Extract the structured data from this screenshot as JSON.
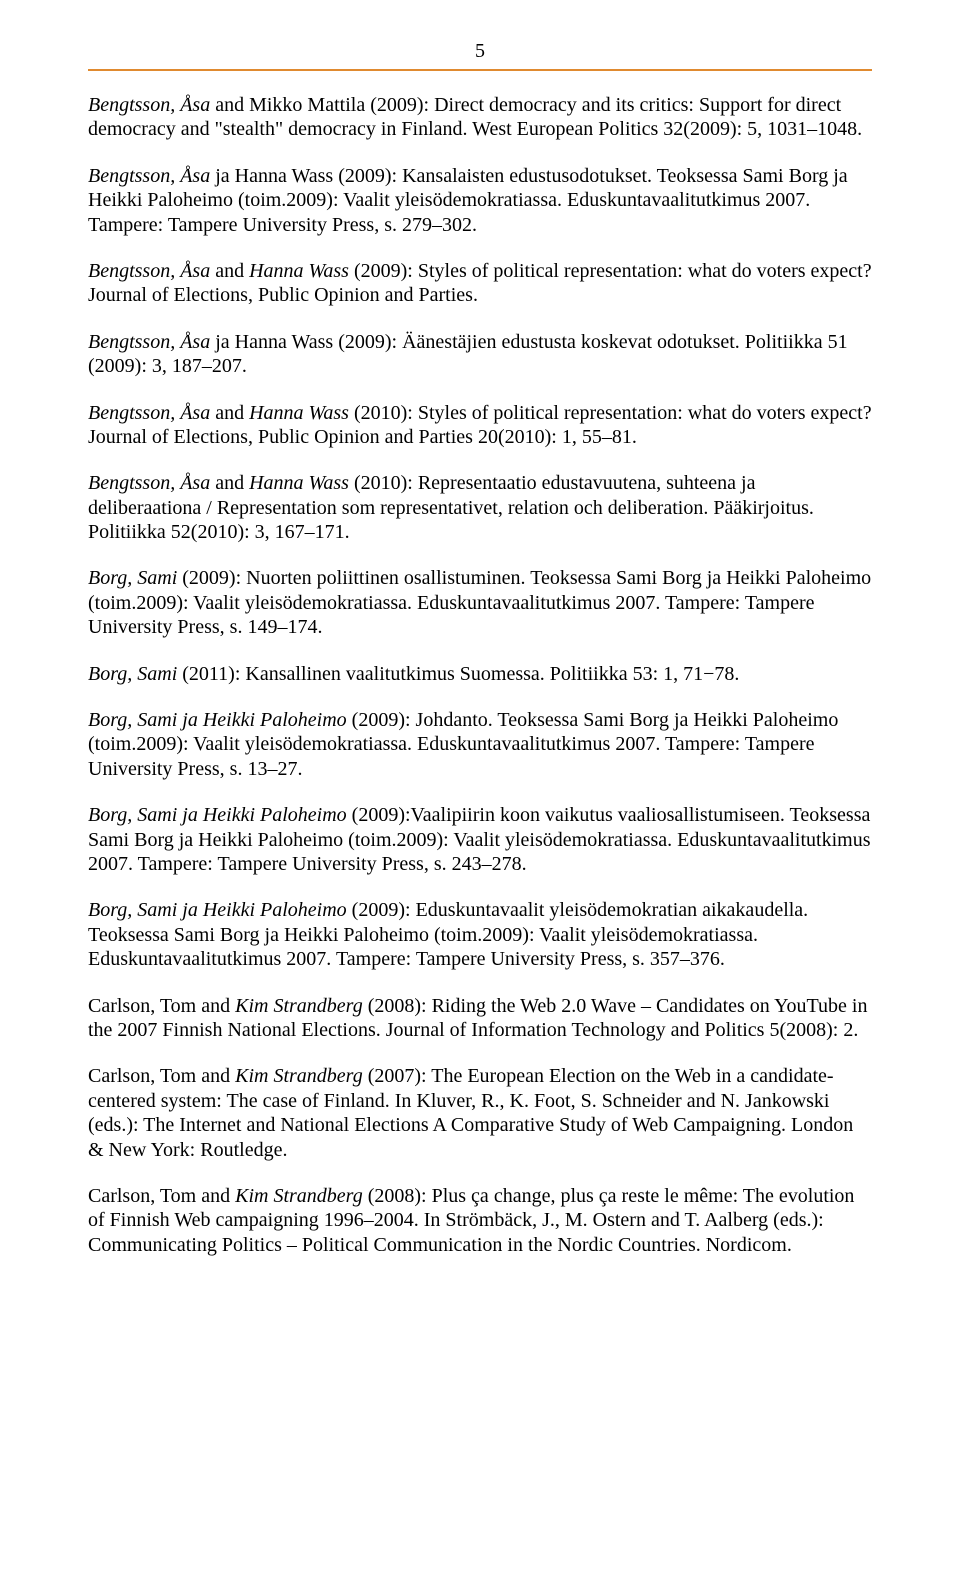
{
  "page_number": "5",
  "rule_color": "#e08a2f",
  "font_family": "Times New Roman",
  "body_font_size_pt": 15,
  "entries": [
    {
      "prefix_italic": "Bengtsson, Åsa",
      "rest": " and Mikko Mattila (2009): Direct democracy and its critics: Support for direct democracy and \"stealth\" democracy in Finland. West European Politics 32(2009): 5, 1031–1048."
    },
    {
      "prefix_italic": "Bengtsson, Åsa",
      "rest": " ja Hanna Wass (2009): Kansalaisten edustusodotukset. Teoksessa Sami Borg ja Heikki Paloheimo (toim.2009): Vaalit yleisödemokratiassa. Eduskuntavaalitutkimus 2007. Tampere: Tampere University Press, s. 279–302."
    },
    {
      "prefix_italic": "Bengtsson, Åsa",
      "mid": " and ",
      "mid_italic": "Hanna Wass",
      "rest": " (2009): Styles of political  representation: what do voters expect? Journal of Elections, Public Opinion and Parties."
    },
    {
      "prefix_italic": "Bengtsson, Åsa",
      "rest": " ja Hanna Wass (2009): Äänestäjien edustusta koskevat odotukset. Politiikka 51 (2009): 3, 187–207."
    },
    {
      "prefix_italic": "Bengtsson, Åsa",
      "mid": " and ",
      "mid_italic": "Hanna Wass",
      "rest": " (2010): Styles of political  representation: what do voters expect? Journal of Elections, Public  Opinion and Parties 20(2010): 1, 55–81."
    },
    {
      "prefix_italic": "Bengtsson, Åsa",
      "mid": " and ",
      "mid_italic": "Hanna Wass",
      "rest": " (2010): Representaatio edustavuutena,  suhteena ja deliberaationa / Representation som representativet,  relation och deliberation. Pääkirjoitus. Politiikka 52(2010): 3,  167–171."
    },
    {
      "prefix_italic": "Borg, Sami",
      "rest": " (2009): Nuorten poliittinen osallistuminen. Teoksessa Sami Borg ja Heikki Paloheimo (toim.2009): Vaalit yleisödemokratiassa. Eduskuntavaalitutkimus 2007. Tampere: Tampere University Press, s. 149–174."
    },
    {
      "prefix_italic": "Borg, Sami",
      "rest": " (2011): Kansallinen vaalitutkimus Suomessa. Politiikka 53: 1, 71−78."
    },
    {
      "prefix_italic": "Borg, Sami ja Heikki Paloheimo",
      "rest": " (2009): Johdanto. Teoksessa Sami Borg ja Heikki Paloheimo (toim.2009): Vaalit yleisödemokratiassa. Eduskuntavaalitutkimus 2007. Tampere: Tampere University Press, s. 13–27."
    },
    {
      "prefix_italic": "Borg, Sami ja Heikki Paloheimo",
      "rest": " (2009):Vaalipiirin koon vaikutus vaaliosallistumiseen. Teoksessa Sami Borg ja Heikki Paloheimo (toim.2009): Vaalit yleisödemokratiassa. Eduskuntavaalitutkimus 2007. Tampere: Tampere University Press, s. 243–278."
    },
    {
      "prefix_italic": "Borg, Sami ja Heikki Paloheimo",
      "rest": " (2009): Eduskuntavaalit yleisödemokratian aikakaudella. Teoksessa Sami Borg ja Heikki Paloheimo (toim.2009): Vaalit yleisödemokratiassa. Eduskuntavaalitutkimus 2007. Tampere: Tampere University Press, s. 357–376."
    },
    {
      "prefix": "Carlson, Tom and ",
      "mid_italic": "Kim Strandberg",
      "rest": " (2008): Riding the Web 2.0 Wave – Candidates on YouTube in the 2007 Finnish National Elections. Journal of Information Technology and Politics 5(2008): 2."
    },
    {
      "prefix": "Carlson, Tom and ",
      "mid_italic": "Kim Strandberg",
      "rest": " (2007): The European Election on the Web in a candidate-centered system: The case of Finland. In Kluver, R., K. Foot, S. Schneider and N. Jankowski (eds.): The Internet and National Elections A Comparative Study of Web Campaigning. London & New York: Routledge."
    },
    {
      "prefix": "Carlson, Tom and ",
      "mid_italic": "Kim Strandberg",
      "rest": " (2008): Plus ça change, plus ça reste le même: The evolution of Finnish Web campaigning 1996–2004. In Strömbäck, J., M. Ostern and T. Aalberg (eds.): Communicating Politics – Political Communication in the Nordic Countries. Nordicom."
    }
  ]
}
